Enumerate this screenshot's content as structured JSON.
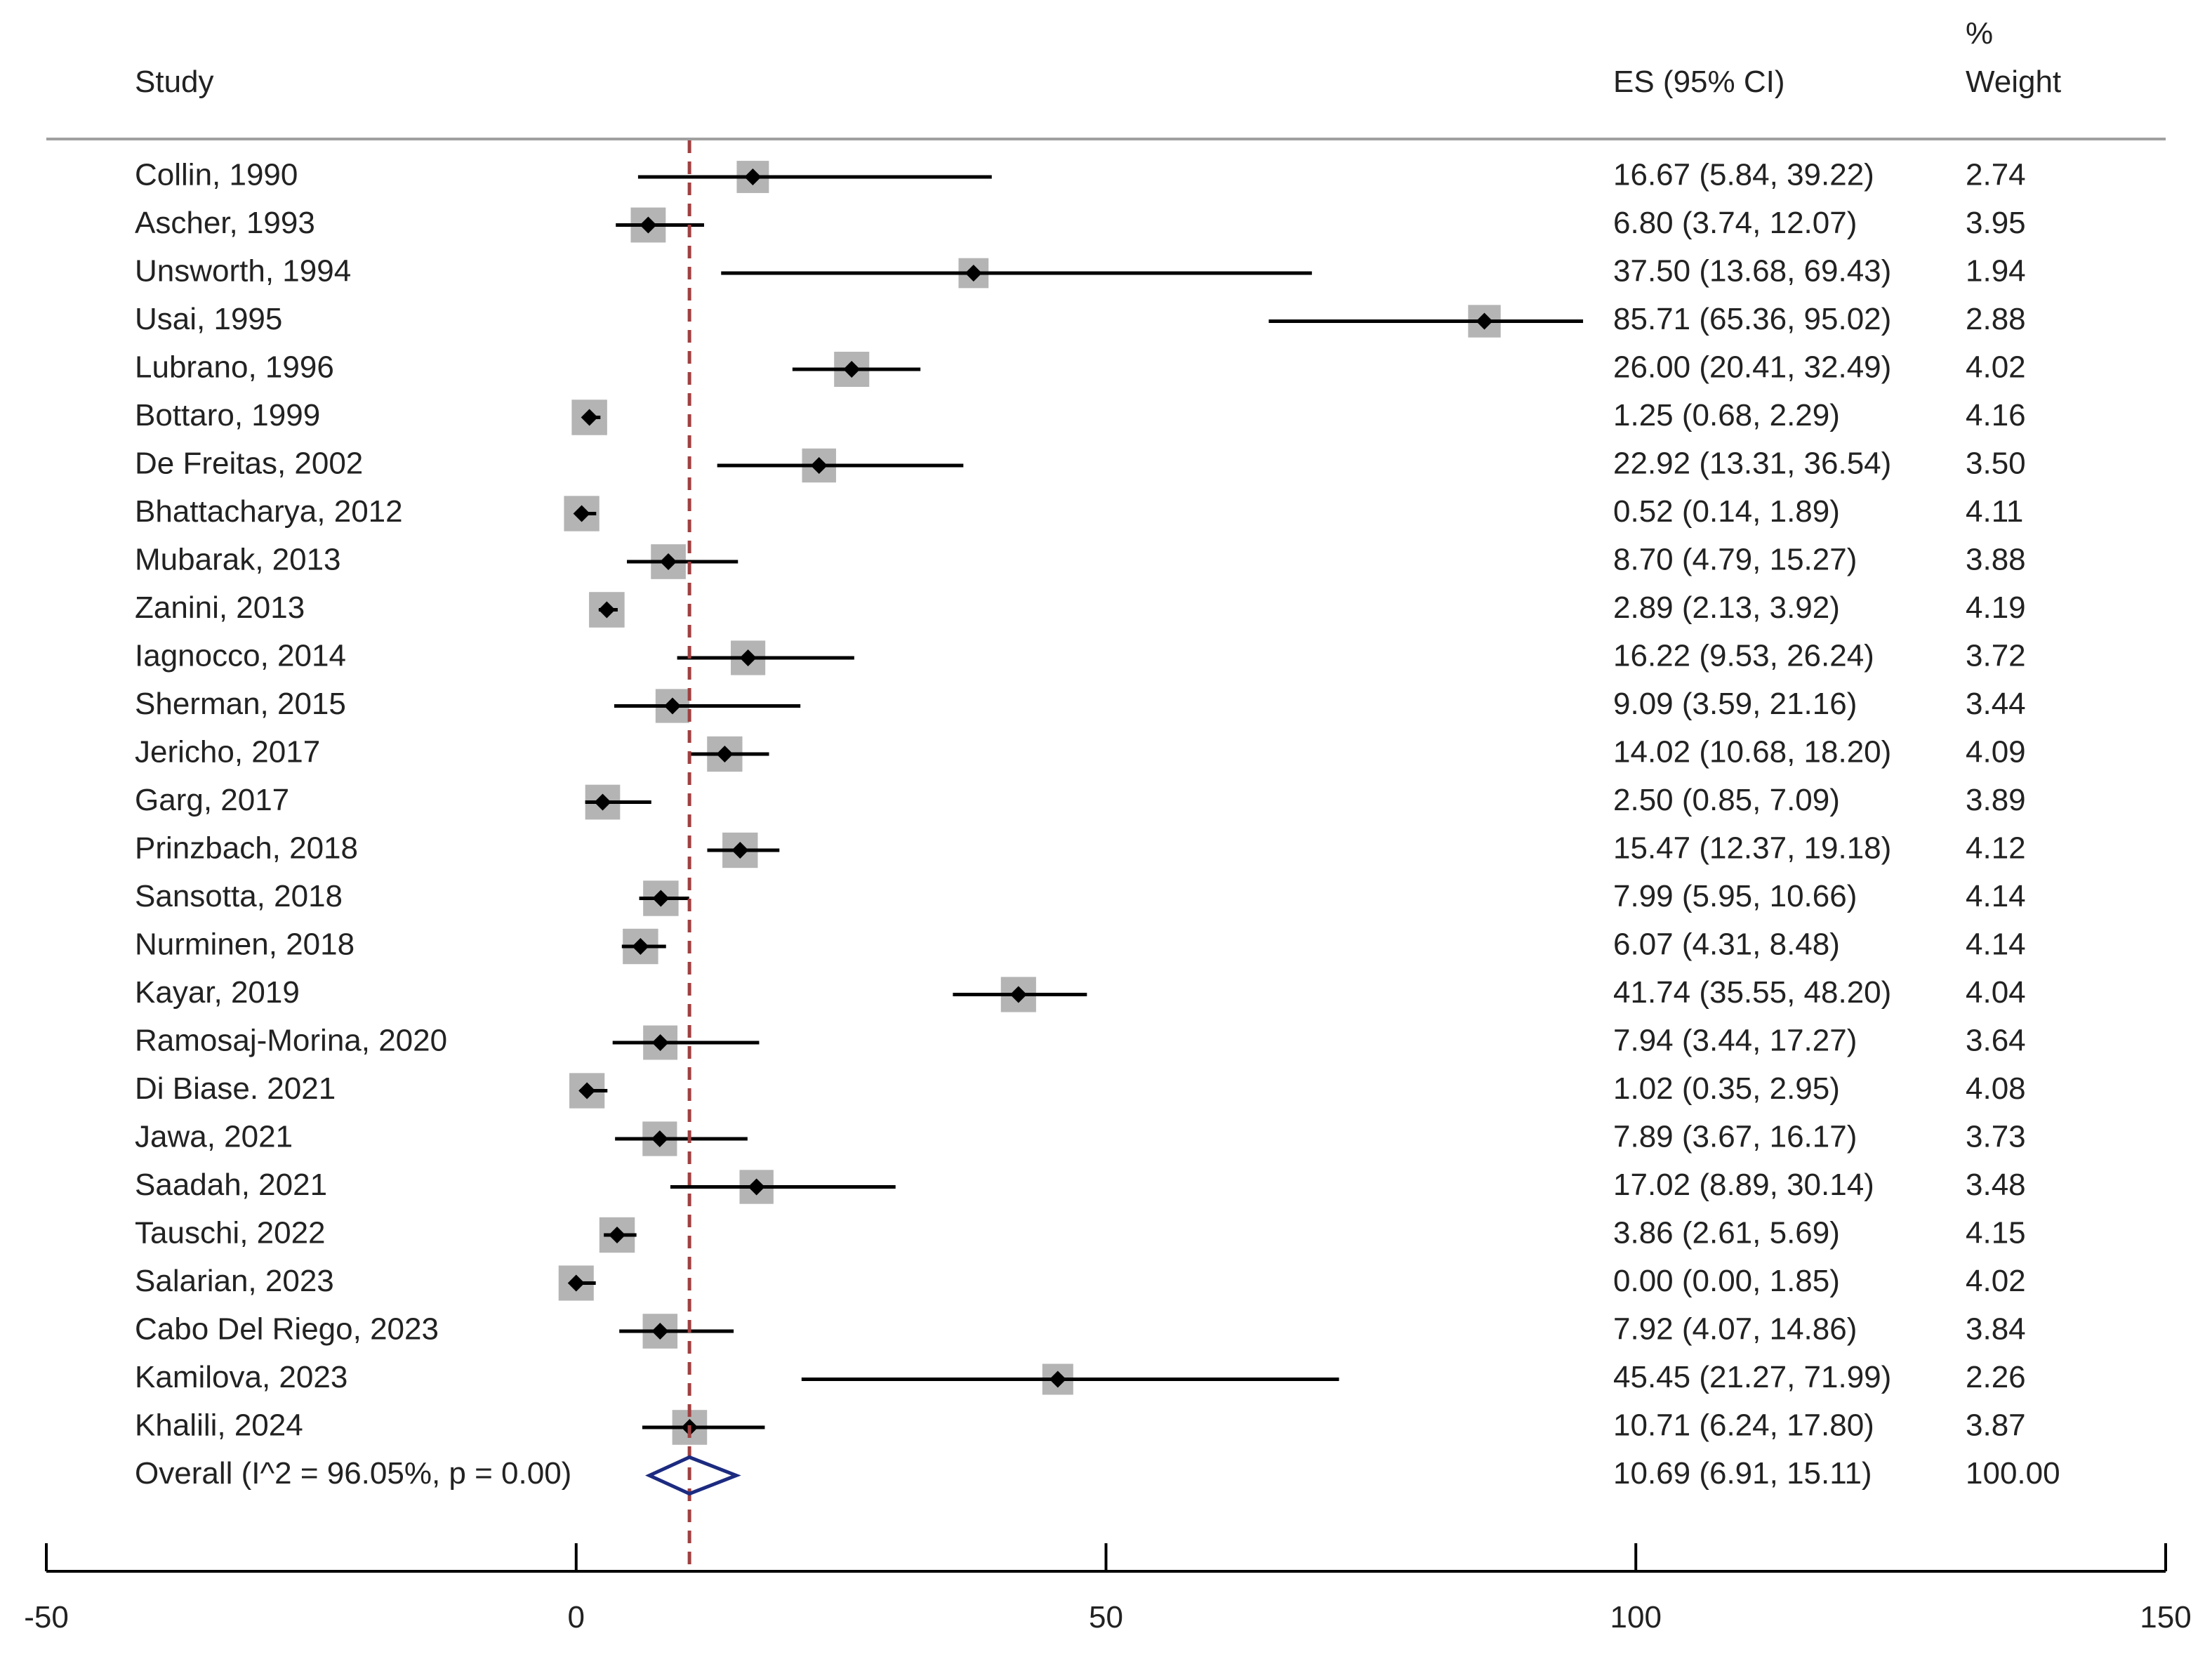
{
  "header": {
    "study": "Study",
    "es": "ES (95% CI)",
    "weight_line1": "%",
    "weight_line2": "Weight"
  },
  "chart_data": {
    "type": "forest",
    "xlim": [
      -50,
      150
    ],
    "ticks": [
      -50,
      0,
      50,
      100,
      150
    ],
    "reference_line": 10.69,
    "studies": [
      {
        "label": "Collin, 1990",
        "es": 16.67,
        "lo": 5.84,
        "hi": 39.22,
        "es_text": "16.67 (5.84, 39.22)",
        "weight": "2.74"
      },
      {
        "label": "Ascher, 1993",
        "es": 6.8,
        "lo": 3.74,
        "hi": 12.07,
        "es_text": "6.80 (3.74, 12.07)",
        "weight": "3.95"
      },
      {
        "label": "Unsworth, 1994",
        "es": 37.5,
        "lo": 13.68,
        "hi": 69.43,
        "es_text": "37.50 (13.68, 69.43)",
        "weight": "1.94"
      },
      {
        "label": "Usai, 1995",
        "es": 85.71,
        "lo": 65.36,
        "hi": 95.02,
        "es_text": "85.71 (65.36, 95.02)",
        "weight": "2.88"
      },
      {
        "label": "Lubrano, 1996",
        "es": 26.0,
        "lo": 20.41,
        "hi": 32.49,
        "es_text": "26.00 (20.41, 32.49)",
        "weight": "4.02"
      },
      {
        "label": "Bottaro, 1999",
        "es": 1.25,
        "lo": 0.68,
        "hi": 2.29,
        "es_text": "1.25 (0.68, 2.29)",
        "weight": "4.16"
      },
      {
        "label": "De Freitas, 2002",
        "es": 22.92,
        "lo": 13.31,
        "hi": 36.54,
        "es_text": "22.92 (13.31, 36.54)",
        "weight": "3.50"
      },
      {
        "label": "Bhattacharya, 2012",
        "es": 0.52,
        "lo": 0.14,
        "hi": 1.89,
        "es_text": "0.52 (0.14, 1.89)",
        "weight": "4.11"
      },
      {
        "label": "Mubarak, 2013",
        "es": 8.7,
        "lo": 4.79,
        "hi": 15.27,
        "es_text": "8.70 (4.79, 15.27)",
        "weight": "3.88"
      },
      {
        "label": "Zanini, 2013",
        "es": 2.89,
        "lo": 2.13,
        "hi": 3.92,
        "es_text": "2.89 (2.13, 3.92)",
        "weight": "4.19"
      },
      {
        "label": "Iagnocco, 2014",
        "es": 16.22,
        "lo": 9.53,
        "hi": 26.24,
        "es_text": "16.22 (9.53, 26.24)",
        "weight": "3.72"
      },
      {
        "label": "Sherman, 2015",
        "es": 9.09,
        "lo": 3.59,
        "hi": 21.16,
        "es_text": "9.09 (3.59, 21.16)",
        "weight": "3.44"
      },
      {
        "label": "Jericho, 2017",
        "es": 14.02,
        "lo": 10.68,
        "hi": 18.2,
        "es_text": "14.02 (10.68, 18.20)",
        "weight": "4.09"
      },
      {
        "label": "Garg, 2017",
        "es": 2.5,
        "lo": 0.85,
        "hi": 7.09,
        "es_text": "2.50 (0.85, 7.09)",
        "weight": "3.89"
      },
      {
        "label": "Prinzbach, 2018",
        "es": 15.47,
        "lo": 12.37,
        "hi": 19.18,
        "es_text": "15.47 (12.37, 19.18)",
        "weight": "4.12"
      },
      {
        "label": "Sansotta, 2018",
        "es": 7.99,
        "lo": 5.95,
        "hi": 10.66,
        "es_text": "7.99 (5.95, 10.66)",
        "weight": "4.14"
      },
      {
        "label": "Nurminen, 2018",
        "es": 6.07,
        "lo": 4.31,
        "hi": 8.48,
        "es_text": "6.07 (4.31, 8.48)",
        "weight": "4.14"
      },
      {
        "label": "Kayar, 2019",
        "es": 41.74,
        "lo": 35.55,
        "hi": 48.2,
        "es_text": "41.74 (35.55, 48.20)",
        "weight": "4.04"
      },
      {
        "label": "Ramosaj-Morina, 2020",
        "es": 7.94,
        "lo": 3.44,
        "hi": 17.27,
        "es_text": "7.94 (3.44, 17.27)",
        "weight": "3.64"
      },
      {
        "label": "Di Biase. 2021",
        "es": 1.02,
        "lo": 0.35,
        "hi": 2.95,
        "es_text": "1.02 (0.35, 2.95)",
        "weight": "4.08"
      },
      {
        "label": "Jawa, 2021",
        "es": 7.89,
        "lo": 3.67,
        "hi": 16.17,
        "es_text": "7.89 (3.67, 16.17)",
        "weight": "3.73"
      },
      {
        "label": "Saadah, 2021",
        "es": 17.02,
        "lo": 8.89,
        "hi": 30.14,
        "es_text": "17.02 (8.89, 30.14)",
        "weight": "3.48"
      },
      {
        "label": "Tauschi, 2022",
        "es": 3.86,
        "lo": 2.61,
        "hi": 5.69,
        "es_text": "3.86 (2.61, 5.69)",
        "weight": "4.15"
      },
      {
        "label": "Salarian, 2023",
        "es": 0.0,
        "lo": 0.0,
        "hi": 1.85,
        "es_text": "0.00 (0.00, 1.85)",
        "weight": "4.02"
      },
      {
        "label": "Cabo Del Riego, 2023",
        "es": 7.92,
        "lo": 4.07,
        "hi": 14.86,
        "es_text": "7.92 (4.07, 14.86)",
        "weight": "3.84"
      },
      {
        "label": "Kamilova, 2023",
        "es": 45.45,
        "lo": 21.27,
        "hi": 71.99,
        "es_text": "45.45 (21.27, 71.99)",
        "weight": "2.26"
      },
      {
        "label": "Khalili, 2024",
        "es": 10.71,
        "lo": 6.24,
        "hi": 17.8,
        "es_text": "10.71 (6.24, 17.80)",
        "weight": "3.87"
      }
    ],
    "overall": {
      "label": "Overall  (I^2 = 96.05%, p = 0.00)",
      "es": 10.69,
      "lo": 6.91,
      "hi": 15.11,
      "es_text": "10.69 (6.91, 15.11)",
      "weight": "100.00"
    },
    "colors": {
      "ci_line": "#000000",
      "marker": "#000000",
      "weight_box": "#b4b4b4",
      "reference_line": "#a04040",
      "overall_diamond": "#1c2b80",
      "divider": "#a0a0a0"
    }
  }
}
